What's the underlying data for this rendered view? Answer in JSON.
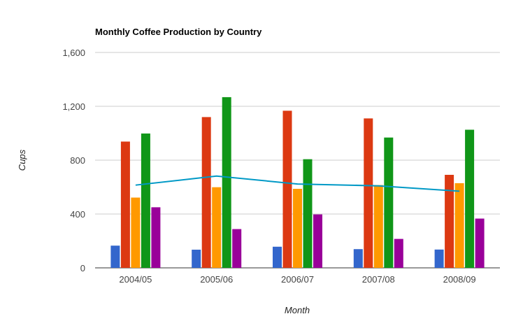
{
  "chart_data": {
    "type": "bar",
    "title": "Monthly Coffee Production by Country",
    "xlabel": "Month",
    "ylabel": "Cups",
    "categories": [
      "2004/05",
      "2005/06",
      "2006/07",
      "2007/08",
      "2008/09"
    ],
    "ylim": [
      0,
      1600
    ],
    "yticks": [
      0,
      400,
      800,
      1200,
      1600
    ],
    "ytick_labels": [
      "0",
      "400",
      "800",
      "1,200",
      "1,600"
    ],
    "grid": true,
    "legend": "none",
    "series": [
      {
        "type": "bar",
        "color": "#3366cc",
        "values": [
          165,
          135,
          157,
          139,
          136
        ]
      },
      {
        "type": "bar",
        "color": "#dc3912",
        "values": [
          938,
          1120,
          1167,
          1110,
          691
        ]
      },
      {
        "type": "bar",
        "color": "#ff9900",
        "values": [
          522,
          599,
          587,
          615,
          629
        ]
      },
      {
        "type": "bar",
        "color": "#109618",
        "values": [
          998,
          1268,
          807,
          968,
          1026
        ]
      },
      {
        "type": "bar",
        "color": "#990099",
        "values": [
          450,
          288,
          397,
          215,
          366
        ]
      },
      {
        "type": "line",
        "color": "#0099c6",
        "values": [
          614.6,
          682,
          623,
          609.4,
          569.6
        ]
      }
    ]
  }
}
